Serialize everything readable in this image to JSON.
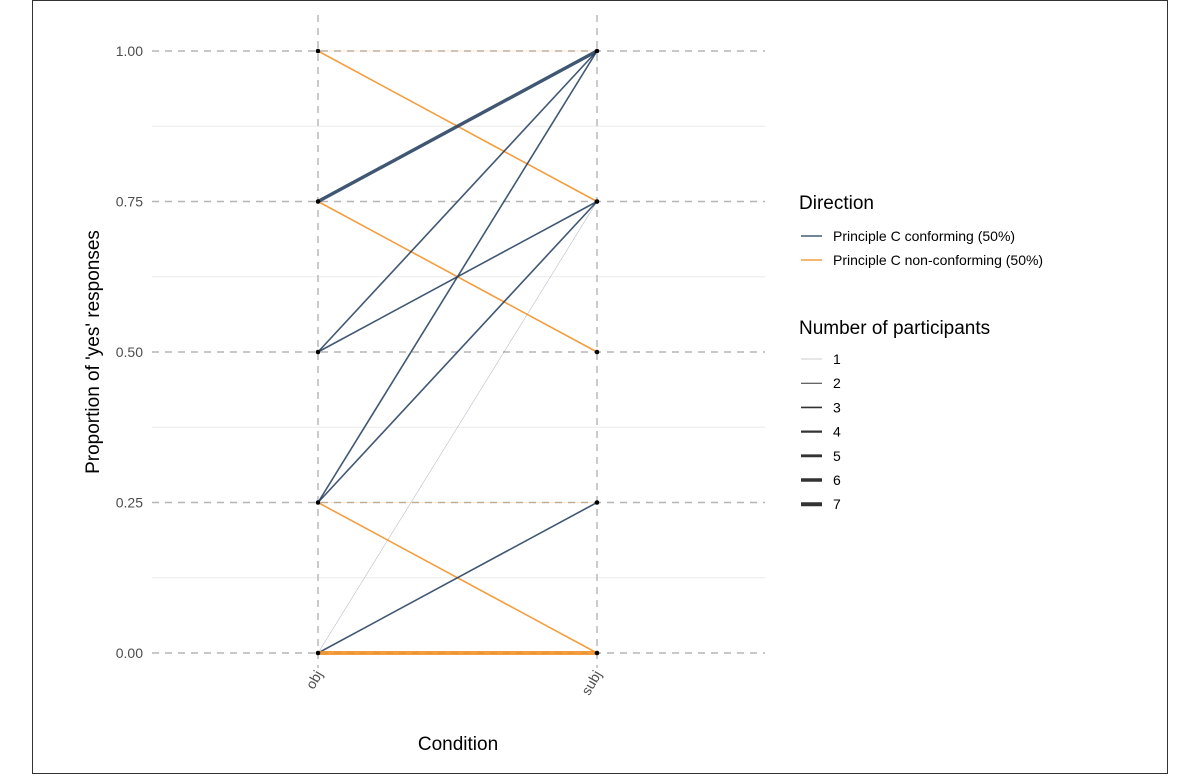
{
  "chart_data": {
    "type": "line",
    "title": "",
    "xlabel": "Condition",
    "ylabel": "Proportion of 'yes' responses",
    "categories": [
      "obj",
      "subj"
    ],
    "ylim": [
      0,
      1
    ],
    "yticks": [
      "0.00",
      "0.25",
      "0.50",
      "0.75",
      "1.00"
    ],
    "grid": true,
    "legend_position": "right",
    "colors": {
      "conforming": "#1f3a5a",
      "non_conforming": "#f28c1c",
      "grid_dashed": "#b5b5b5",
      "grid_minor": "#ebebeb",
      "legend_width": "#000000"
    },
    "legends": {
      "direction": {
        "title": "Direction",
        "entries": [
          {
            "key": "conforming",
            "label": "Principle C conforming (50%)"
          },
          {
            "key": "non_conforming",
            "label": "Principle C non-conforming (50%)"
          }
        ]
      },
      "participants": {
        "title": "Number of participants",
        "entries": [
          "1",
          "2",
          "3",
          "4",
          "5",
          "6",
          "7"
        ]
      }
    },
    "series": [
      {
        "direction": "non_conforming",
        "obj": 1.0,
        "subj": 1.0,
        "n": 1
      },
      {
        "direction": "non_conforming",
        "obj": 1.0,
        "subj": 0.75,
        "n": 3
      },
      {
        "direction": "conforming",
        "obj": 0.75,
        "subj": 1.0,
        "n": 6
      },
      {
        "direction": "non_conforming",
        "obj": 0.75,
        "subj": 0.5,
        "n": 3
      },
      {
        "direction": "conforming",
        "obj": 0.5,
        "subj": 1.0,
        "n": 3
      },
      {
        "direction": "conforming",
        "obj": 0.5,
        "subj": 0.75,
        "n": 3
      },
      {
        "direction": "conforming",
        "obj": 0.25,
        "subj": 1.0,
        "n": 3
      },
      {
        "direction": "conforming",
        "obj": 0.25,
        "subj": 0.75,
        "n": 3
      },
      {
        "direction": "non_conforming",
        "obj": 0.25,
        "subj": 0.25,
        "n": 1
      },
      {
        "direction": "non_conforming",
        "obj": 0.25,
        "subj": 0.0,
        "n": 3
      },
      {
        "direction": "conforming",
        "obj": 0.0,
        "subj": 0.75,
        "n": 1
      },
      {
        "direction": "conforming",
        "obj": 0.0,
        "subj": 0.25,
        "n": 3
      },
      {
        "direction": "non_conforming",
        "obj": 0.0,
        "subj": 0.0,
        "n": 7
      }
    ],
    "points": [
      {
        "x": "obj",
        "y": 1.0
      },
      {
        "x": "obj",
        "y": 0.75
      },
      {
        "x": "obj",
        "y": 0.5
      },
      {
        "x": "obj",
        "y": 0.25
      },
      {
        "x": "obj",
        "y": 0.0
      },
      {
        "x": "subj",
        "y": 1.0
      },
      {
        "x": "subj",
        "y": 0.75
      },
      {
        "x": "subj",
        "y": 0.5
      },
      {
        "x": "subj",
        "y": 0.25
      },
      {
        "x": "subj",
        "y": 0.0
      }
    ]
  }
}
